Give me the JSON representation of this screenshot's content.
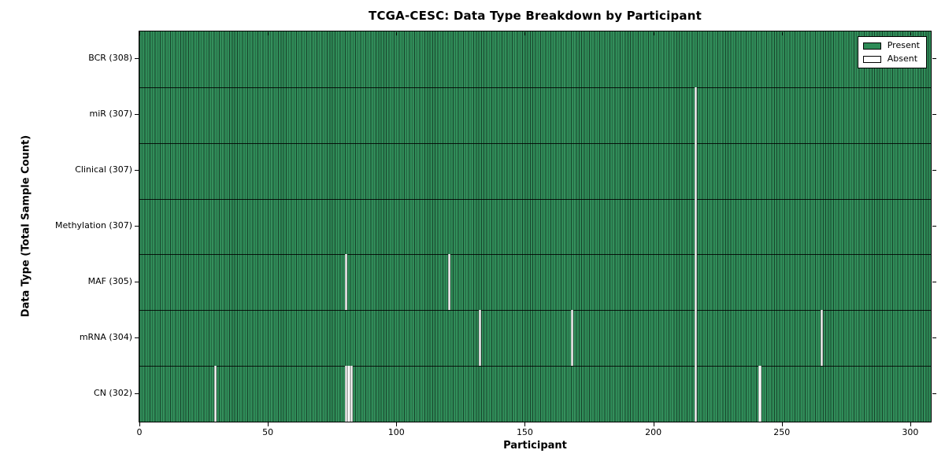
{
  "chart_data": {
    "type": "heatmap",
    "title": "TCGA-CESC: Data Type Breakdown by Participant",
    "xlabel": "Participant",
    "ylabel": "Data Type (Total Sample Count)",
    "x_ticks": [
      0,
      50,
      100,
      150,
      200,
      250,
      300
    ],
    "xlim": [
      0,
      308
    ],
    "n_participants": 308,
    "grid": false,
    "legend_position": "upper right",
    "legend": [
      {
        "label": "Present",
        "color": "#2e8b57"
      },
      {
        "label": "Absent",
        "color": "#ffffff"
      }
    ],
    "colors": {
      "present": "#2e8b57",
      "absent": "#ffffff",
      "bar_edge": "rgba(0,0,0,0.5)",
      "row_divider": "rgba(0,0,0,0.85)"
    },
    "rows": [
      {
        "name": "BCR",
        "total": 308,
        "tick_label": "BCR (308)",
        "absent_participants": []
      },
      {
        "name": "miR",
        "total": 307,
        "tick_label": "miR (307)",
        "absent_participants": [
          216
        ]
      },
      {
        "name": "Clinical",
        "total": 307,
        "tick_label": "Clinical (307)",
        "absent_participants": [
          216
        ]
      },
      {
        "name": "Methylation",
        "total": 307,
        "tick_label": "Methylation (307)",
        "absent_participants": [
          216
        ]
      },
      {
        "name": "MAF",
        "total": 305,
        "tick_label": "MAF (305)",
        "absent_participants": [
          80,
          120,
          216
        ]
      },
      {
        "name": "mRNA",
        "total": 304,
        "tick_label": "mRNA (304)",
        "absent_participants": [
          132,
          168,
          216,
          265
        ]
      },
      {
        "name": "CN",
        "total": 302,
        "tick_label": "CN (302)",
        "absent_participants": [
          29,
          80,
          81,
          82,
          216,
          241
        ]
      }
    ]
  }
}
